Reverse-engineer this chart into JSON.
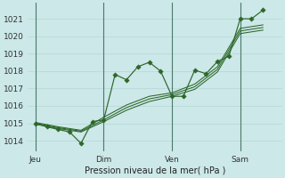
{
  "bg_color": "#cce8e8",
  "grid_color": "#aad4d4",
  "line_color": "#2d6629",
  "marker_color": "#2d6629",
  "xlabel": "Pression niveau de la mer( hPa )",
  "ylim": [
    1013.4,
    1021.9
  ],
  "yticks": [
    1014,
    1015,
    1016,
    1017,
    1018,
    1019,
    1020,
    1021
  ],
  "xtick_labels": [
    "Jeu",
    "Dim",
    "Ven",
    "Sam"
  ],
  "xtick_positions": [
    0,
    36,
    72,
    108
  ],
  "xlim": [
    -4,
    130
  ],
  "vlines_x": [
    0,
    36,
    72,
    108
  ],
  "series_main_x": [
    0,
    6,
    12,
    18,
    24,
    30,
    36,
    42,
    48,
    54,
    60,
    66,
    72,
    78,
    84,
    90,
    96,
    102,
    108,
    114,
    120
  ],
  "series_main_y": [
    1015.0,
    1014.8,
    1014.65,
    1014.5,
    1013.85,
    1015.1,
    1015.2,
    1017.8,
    1017.5,
    1018.25,
    1018.5,
    1018.0,
    1016.55,
    1016.55,
    1018.05,
    1017.85,
    1018.55,
    1018.85,
    1021.0,
    1021.0,
    1021.5
  ],
  "series2_x": [
    0,
    12,
    24,
    36,
    48,
    60,
    72,
    84,
    96,
    108,
    120
  ],
  "series2_y": [
    1015.0,
    1014.75,
    1014.55,
    1015.2,
    1015.9,
    1016.4,
    1016.65,
    1017.1,
    1018.1,
    1020.3,
    1020.5
  ],
  "series3_x": [
    0,
    12,
    24,
    36,
    48,
    60,
    72,
    84,
    96,
    108,
    120
  ],
  "series3_y": [
    1015.05,
    1014.8,
    1014.6,
    1015.35,
    1016.05,
    1016.55,
    1016.75,
    1017.25,
    1018.25,
    1020.45,
    1020.65
  ],
  "series4_x": [
    0,
    12,
    24,
    36,
    48,
    60,
    72,
    84,
    96,
    108,
    120
  ],
  "series4_y": [
    1014.95,
    1014.7,
    1014.5,
    1015.1,
    1015.75,
    1016.25,
    1016.55,
    1016.95,
    1017.95,
    1020.15,
    1020.35
  ]
}
